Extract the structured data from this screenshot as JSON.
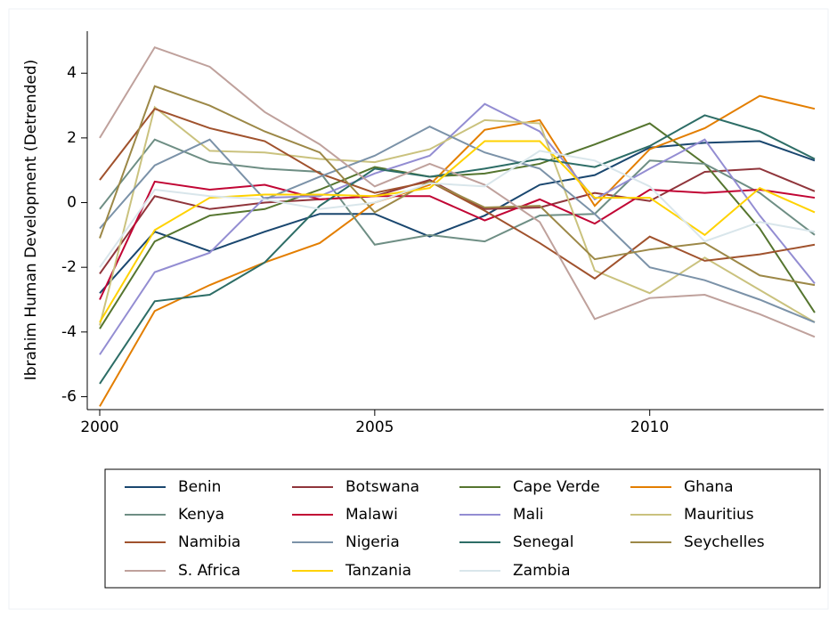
{
  "chart_data": {
    "type": "line",
    "y_label": "Ibrahim Human Development (Detrended)",
    "x": [
      2000,
      2001,
      2002,
      2003,
      2004,
      2005,
      2006,
      2007,
      2008,
      2009,
      2010,
      2011,
      2012,
      2013
    ],
    "xlim": [
      2000,
      2013
    ],
    "xticks": [
      2000,
      2005,
      2010
    ],
    "ylim": [
      -6.4,
      5.3
    ],
    "yticks": [
      -6,
      -4,
      -2,
      0,
      2,
      4
    ],
    "grid": false,
    "legend": "bottom",
    "series": [
      {
        "name": "Benin",
        "color": "#1a476f",
        "values": [
          -2.8,
          -0.9,
          -1.5,
          -0.9,
          -0.35,
          -0.35,
          -1.05,
          -0.4,
          0.55,
          0.85,
          1.7,
          1.85,
          1.9,
          1.3
        ]
      },
      {
        "name": "Botswana",
        "color": "#90353b",
        "values": [
          -2.2,
          0.2,
          -0.2,
          0.0,
          0.1,
          0.2,
          0.7,
          -0.2,
          -0.15,
          0.3,
          0.05,
          0.95,
          1.05,
          0.35
        ]
      },
      {
        "name": "Cape Verde",
        "color": "#55752f",
        "values": [
          -3.9,
          -1.2,
          -0.4,
          -0.2,
          0.4,
          1.1,
          0.8,
          0.9,
          1.2,
          1.8,
          2.45,
          1.2,
          -0.8,
          -3.4
        ]
      },
      {
        "name": "Ghana",
        "color": "#e37e00",
        "values": [
          -6.3,
          -3.35,
          -2.55,
          -1.85,
          -1.25,
          0.0,
          0.55,
          2.25,
          2.55,
          -0.1,
          1.65,
          2.3,
          3.3,
          2.9
        ]
      },
      {
        "name": "Kenya",
        "color": "#6e8e84",
        "values": [
          -0.2,
          1.95,
          1.25,
          1.05,
          0.95,
          -1.3,
          -1.0,
          -1.2,
          -0.4,
          -0.35,
          1.3,
          1.2,
          0.3,
          -1.0
        ]
      },
      {
        "name": "Malawi",
        "color": "#c10534",
        "values": [
          -3.0,
          0.65,
          0.4,
          0.55,
          0.1,
          0.2,
          0.2,
          -0.55,
          0.1,
          -0.65,
          0.4,
          0.3,
          0.4,
          0.15
        ]
      },
      {
        "name": "Mali",
        "color": "#938dd2",
        "values": [
          -4.7,
          -2.15,
          -1.55,
          0.15,
          0.2,
          0.9,
          1.45,
          3.05,
          2.2,
          0.1,
          1.05,
          1.95,
          -0.4,
          -2.5
        ]
      },
      {
        "name": "Mauritius",
        "color": "#cac27e",
        "values": [
          -3.8,
          2.95,
          1.6,
          1.55,
          1.35,
          1.25,
          1.65,
          2.55,
          2.45,
          -2.1,
          -2.8,
          -1.7,
          -2.7,
          -3.7
        ]
      },
      {
        "name": "Namibia",
        "color": "#a0522d",
        "values": [
          0.7,
          2.9,
          2.3,
          1.9,
          0.9,
          0.3,
          0.65,
          -0.25,
          -1.25,
          -2.35,
          -1.05,
          -1.8,
          -1.6,
          -1.3
        ]
      },
      {
        "name": "Nigeria",
        "color": "#7b92a8",
        "values": [
          -0.8,
          1.15,
          1.95,
          0.1,
          0.8,
          1.45,
          2.35,
          1.55,
          1.05,
          -0.35,
          -2.0,
          -2.4,
          -3.0,
          -3.7
        ]
      },
      {
        "name": "Senegal",
        "color": "#2d6d66",
        "values": [
          -5.6,
          -3.05,
          -2.85,
          -1.85,
          -0.1,
          1.05,
          0.8,
          1.05,
          1.35,
          1.1,
          1.75,
          2.7,
          2.2,
          1.35
        ]
      },
      {
        "name": "Seychelles",
        "color": "#9c8847",
        "values": [
          -1.1,
          3.6,
          3.0,
          2.2,
          1.55,
          -0.3,
          0.65,
          -0.15,
          -0.1,
          -1.75,
          -1.45,
          -1.25,
          -2.25,
          -2.55
        ]
      },
      {
        "name": "S. Africa",
        "color": "#bfa19c",
        "values": [
          2.0,
          4.8,
          4.2,
          2.8,
          1.8,
          0.5,
          1.2,
          0.55,
          -0.6,
          -3.6,
          -2.95,
          -2.85,
          -3.45,
          -4.15
        ]
      },
      {
        "name": "Tanzania",
        "color": "#ffd200",
        "values": [
          -3.7,
          -0.85,
          0.15,
          0.25,
          0.25,
          0.2,
          0.45,
          1.9,
          1.9,
          0.15,
          0.15,
          -1.0,
          0.45,
          -0.3
        ]
      },
      {
        "name": "Zambia",
        "color": "#d9e6eb",
        "values": [
          -2.0,
          0.4,
          0.2,
          0.1,
          -0.2,
          0.0,
          0.6,
          0.5,
          1.6,
          1.3,
          0.5,
          -1.2,
          -0.6,
          -0.9
        ]
      }
    ]
  }
}
